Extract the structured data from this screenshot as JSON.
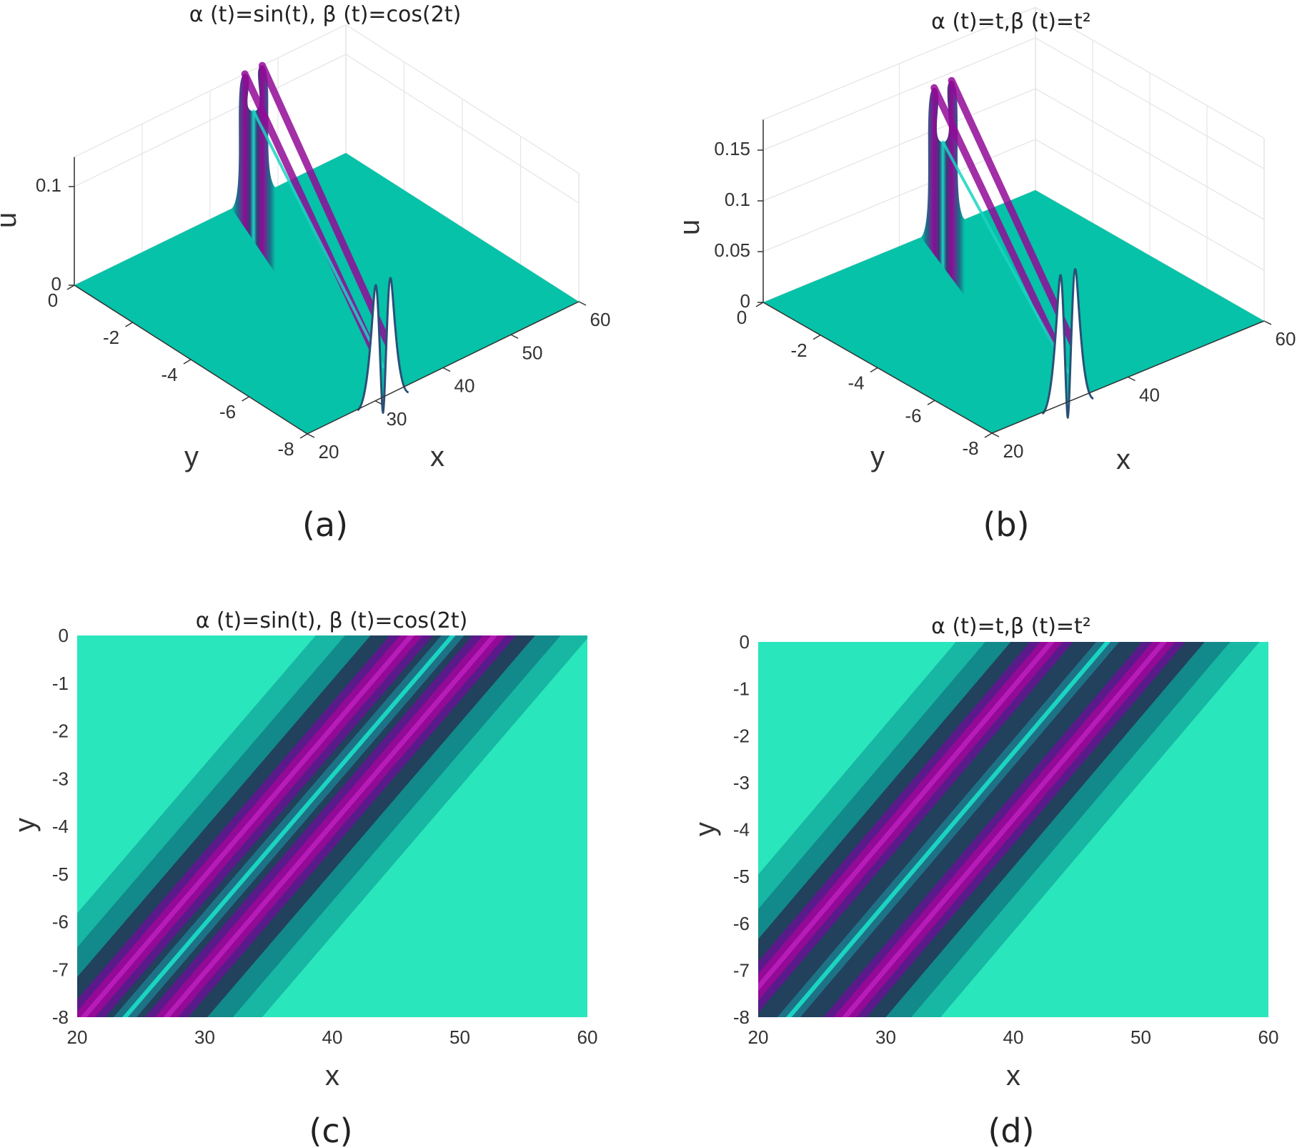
{
  "colors": {
    "background": "#2ae6bc",
    "plateau": "#05c2a8",
    "dark": "#21415d",
    "magenta": "#920a96",
    "ridge": "#1bd4c2"
  },
  "chart_data": [
    {
      "type": "surface",
      "panel": "a",
      "caption": "(a)",
      "title": "α (t)=sin(t), β (t)=cos(2t)",
      "xlabel": "x",
      "ylabel": "y",
      "zlabel": "u",
      "xlim": [
        20,
        60
      ],
      "ylim": [
        -8,
        0
      ],
      "zlim": [
        0,
        0.13
      ],
      "xticks": [
        20,
        30,
        40,
        50,
        60
      ],
      "yticks": [
        0,
        -2,
        -4,
        -6,
        -8
      ],
      "zticks": [
        0,
        0.1
      ],
      "xtick_labels": [
        "20",
        "30",
        "40",
        "50",
        "60"
      ],
      "ytick_labels": [
        "0",
        "-2",
        "-4",
        "-6",
        "-8"
      ],
      "ztick_labels": [
        "0",
        "0.1"
      ],
      "peak_u": 0.13,
      "dip_u": 0.088
    },
    {
      "type": "surface",
      "panel": "b",
      "caption": "(b)",
      "title": "α (t)=t,β (t)=t²",
      "xlabel": "x",
      "ylabel": "y",
      "zlabel": "u",
      "xlim": [
        20,
        60
      ],
      "ylim": [
        -8,
        0
      ],
      "zlim": [
        0,
        0.18
      ],
      "xticks": [
        20,
        40,
        60
      ],
      "yticks": [
        0,
        -2,
        -4,
        -6,
        -8
      ],
      "zticks": [
        0,
        0.05,
        0.1,
        0.15
      ],
      "xtick_labels": [
        "20",
        "40",
        "60"
      ],
      "ytick_labels": [
        "0",
        "-2",
        "-4",
        "-6",
        "-8"
      ],
      "ztick_labels": [
        "0",
        "0.05",
        "0.1",
        "0.15"
      ],
      "peak_u": 0.142,
      "dip_u": 0.085
    },
    {
      "type": "heatmap",
      "panel": "c",
      "caption": "(c)",
      "title": "α (t)=sin(t), β (t)=cos(2t)",
      "xlabel": "x",
      "ylabel": "y",
      "xlim": [
        20,
        60
      ],
      "ylim": [
        -8,
        0
      ],
      "xticks": [
        20,
        30,
        40,
        50,
        60
      ],
      "yticks": [
        0,
        -1,
        -2,
        -3,
        -4,
        -5,
        -6,
        -7,
        -8
      ],
      "xtick_labels": [
        "20",
        "30",
        "40",
        "50",
        "60"
      ],
      "ytick_labels": [
        "0",
        "-1",
        "-2",
        "-3",
        "-4",
        "-5",
        "-6",
        "-7",
        "-8"
      ],
      "band_centers_at_y0": [
        46.2,
        52.7
      ],
      "band_centers_at_y_minus8": [
        20.5,
        27.0
      ],
      "ridge_center_at_y0": 49.5,
      "ridge_center_at_y_minus8": 23.8
    },
    {
      "type": "heatmap",
      "panel": "d",
      "caption": "(d)",
      "title": "α (t)=t,β (t)=t²",
      "xlabel": "x",
      "ylabel": "y",
      "xlim": [
        20,
        60
      ],
      "ylim": [
        -8,
        0
      ],
      "xticks": [
        20,
        30,
        40,
        50,
        60
      ],
      "yticks": [
        0,
        -1,
        -2,
        -3,
        -4,
        -5,
        -6,
        -7,
        -8
      ],
      "xtick_labels": [
        "20",
        "30",
        "40",
        "50",
        "60"
      ],
      "ytick_labels": [
        "0",
        "-1",
        "-2",
        "-3",
        "-4",
        "-5",
        "-6",
        "-7",
        "-8"
      ],
      "band_centers_at_y0": [
        43.0,
        51.8
      ],
      "band_centers_at_y_minus8": [
        18.0,
        26.8
      ],
      "ridge_center_at_y0": 47.4,
      "ridge_center_at_y_minus8": 22.4
    }
  ]
}
